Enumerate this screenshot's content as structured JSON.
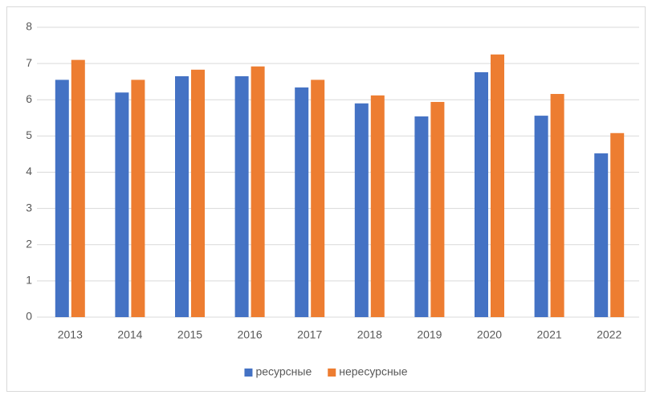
{
  "chart_data": {
    "type": "bar",
    "categories": [
      "2013",
      "2014",
      "2015",
      "2016",
      "2017",
      "2018",
      "2019",
      "2020",
      "2021",
      "2022"
    ],
    "series": [
      {
        "name": "ресурсные",
        "color": "#4472c4",
        "values": [
          6.55,
          6.2,
          6.65,
          6.65,
          6.34,
          5.9,
          5.54,
          6.76,
          5.56,
          4.52
        ]
      },
      {
        "name": "нересурсные",
        "color": "#ed7d31",
        "values": [
          7.1,
          6.55,
          6.83,
          6.92,
          6.55,
          6.12,
          5.94,
          7.25,
          6.16,
          5.08
        ]
      }
    ],
    "ylim": [
      0,
      8
    ],
    "yticks": [
      0,
      1,
      2,
      3,
      4,
      5,
      6,
      7,
      8
    ],
    "grid": true,
    "legend": "bottom"
  }
}
